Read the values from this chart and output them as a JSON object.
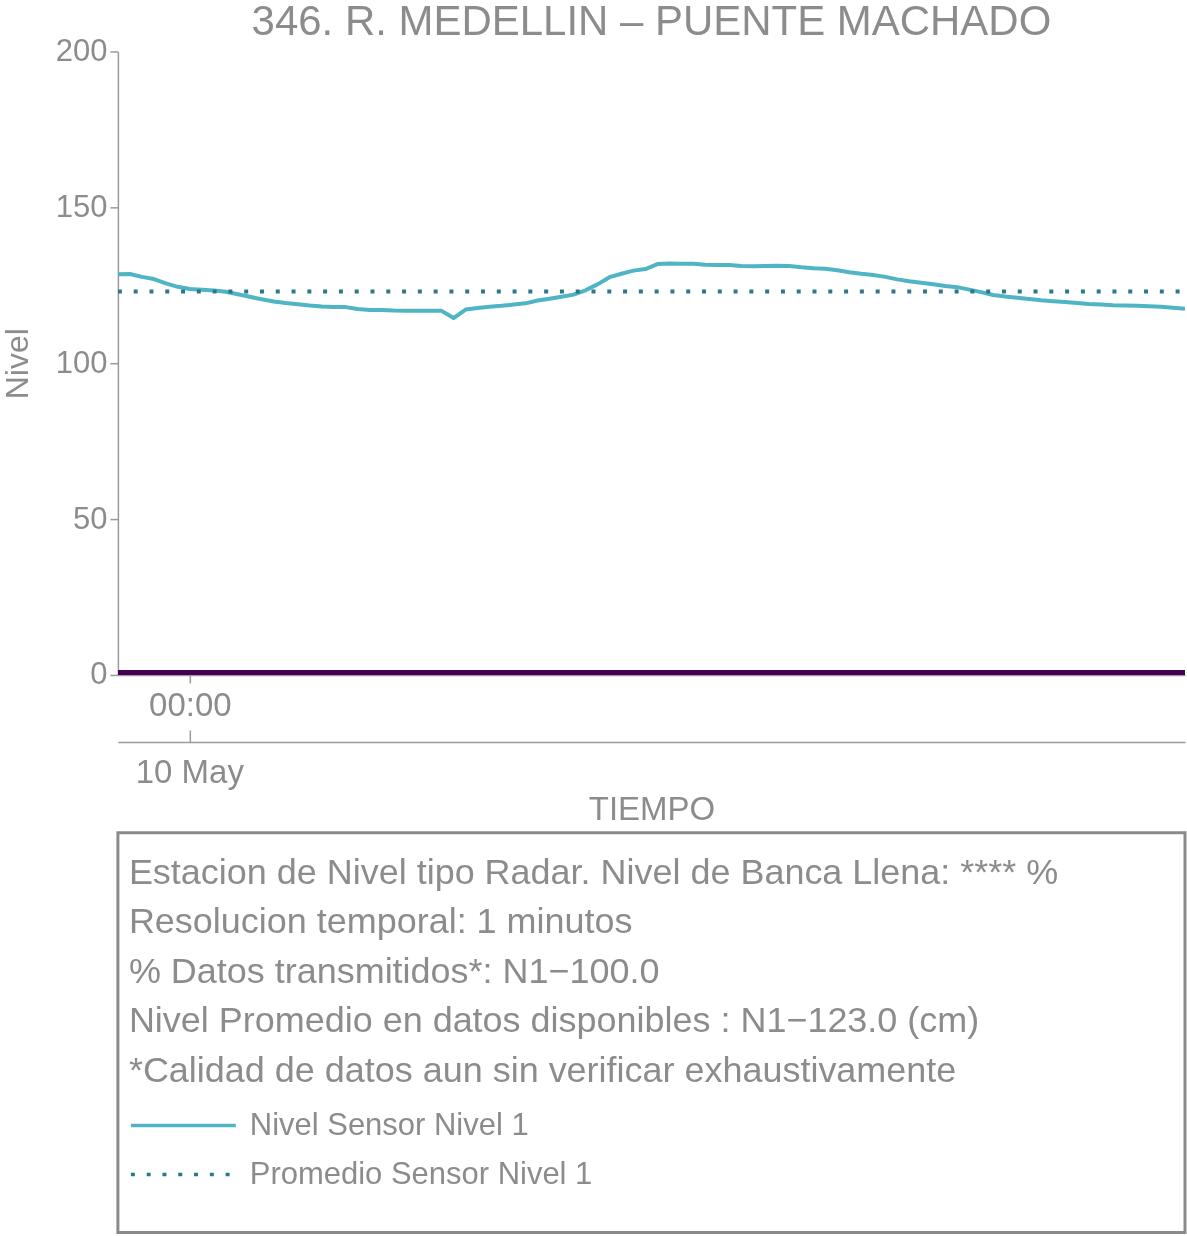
{
  "chart_data": {
    "type": "line",
    "title": "346. R. MEDELLIN – PUENTE MACHADO",
    "xlabel": "TIEMPO",
    "ylabel": "Nivel",
    "categories": [
      null,
      null,
      null,
      null,
      null,
      null,
      "00:00",
      null,
      null,
      null,
      null,
      null,
      null,
      null,
      null,
      null,
      null,
      null,
      null,
      null,
      null,
      null,
      null,
      null,
      null,
      null,
      null,
      null,
      null,
      null,
      null,
      null,
      null,
      null,
      null,
      null,
      null,
      null,
      null,
      null,
      null,
      null,
      null,
      null,
      null,
      null,
      null,
      null,
      null,
      null,
      null,
      null,
      null,
      null,
      null,
      null,
      null,
      null,
      null,
      null,
      null,
      null,
      null,
      null,
      null,
      null,
      null,
      null,
      null,
      null,
      null,
      null,
      null,
      null,
      null,
      null,
      null,
      null,
      null,
      null,
      null,
      null,
      null,
      null,
      null,
      null,
      null,
      null,
      null,
      null
    ],
    "ylim": [
      0,
      200
    ],
    "yticks": [
      0,
      50,
      100,
      150,
      200
    ],
    "grid": false,
    "legend": "bottom",
    "line_style": "solid",
    "series": [
      {
        "name": "Nivel Sensor Nivel 1",
        "color": "#4fb5c4",
        "values": [
          128.5,
          128.6,
          127.7,
          127,
          125.6,
          124.5,
          123.8,
          123.6,
          123.3,
          122.9,
          122.1,
          121.3,
          120.5,
          119.8,
          119.3,
          118.9,
          118.5,
          118.2,
          118,
          118,
          117.4,
          117.1,
          117.1,
          116.9,
          116.8,
          116.8,
          116.8,
          116.8,
          114.5,
          117.2,
          117.7,
          118.1,
          118.4,
          118.8,
          119.2,
          120.1,
          120.7,
          121.3,
          122,
          123.4,
          125.3,
          127.6,
          128.7,
          129.7,
          130.2,
          131.8,
          132,
          131.9,
          131.9,
          131.6,
          131.5,
          131.5,
          131.2,
          131.1,
          131.2,
          131.3,
          131.2,
          130.8,
          130.5,
          130.3,
          129.8,
          129.2,
          128.7,
          128.3,
          127.7,
          126.9,
          126.3,
          125.8,
          125.3,
          124.8,
          124.4,
          123.6,
          122.8,
          121.9,
          121.4,
          121,
          120.6,
          120.2,
          119.9,
          119.6,
          119.3,
          119,
          118.8,
          118.6,
          118.5,
          118.4,
          118.3,
          118.1,
          117.8,
          117.5
        ]
      },
      {
        "name": "Promedio Sensor Nivel 1",
        "color": "#2a788e",
        "type": "line",
        "line_style": "dotted",
        "values": [
          123,
          123,
          123,
          123,
          123,
          123,
          123,
          123,
          123,
          123,
          123,
          123,
          123,
          123,
          123,
          123,
          123,
          123,
          123,
          123,
          123,
          123,
          123,
          123,
          123,
          123,
          123,
          123,
          123,
          123,
          123,
          123,
          123,
          123,
          123,
          123,
          123,
          123,
          123,
          123,
          123,
          123,
          123,
          123,
          123,
          123,
          123,
          123,
          123,
          123,
          123,
          123,
          123,
          123,
          123,
          123,
          123,
          123,
          123,
          123,
          123,
          123,
          123,
          123,
          123,
          123,
          123,
          123,
          123,
          123,
          123,
          123,
          123,
          123,
          123,
          123,
          123,
          123,
          123,
          123,
          123,
          123,
          123,
          123,
          123,
          123,
          123,
          123,
          123,
          123
        ]
      }
    ],
    "ref_lines": [
      {
        "axis": "y",
        "value": 0,
        "color": "#440154"
      }
    ],
    "annotations": [
      {
        "text": "10 May",
        "x": "00:00"
      },
      "Estacion de Nivel tipo Radar. Nivel de Banca Llena: **** %",
      "Resolucion temporal: 1 minutos",
      "% Datos transmitidos*: N1−100.0",
      "Nivel Promedio en datos disponibles : N1−123.0 (cm)",
      "*Calidad de datos aun sin verificar exhaustivamente"
    ]
  }
}
